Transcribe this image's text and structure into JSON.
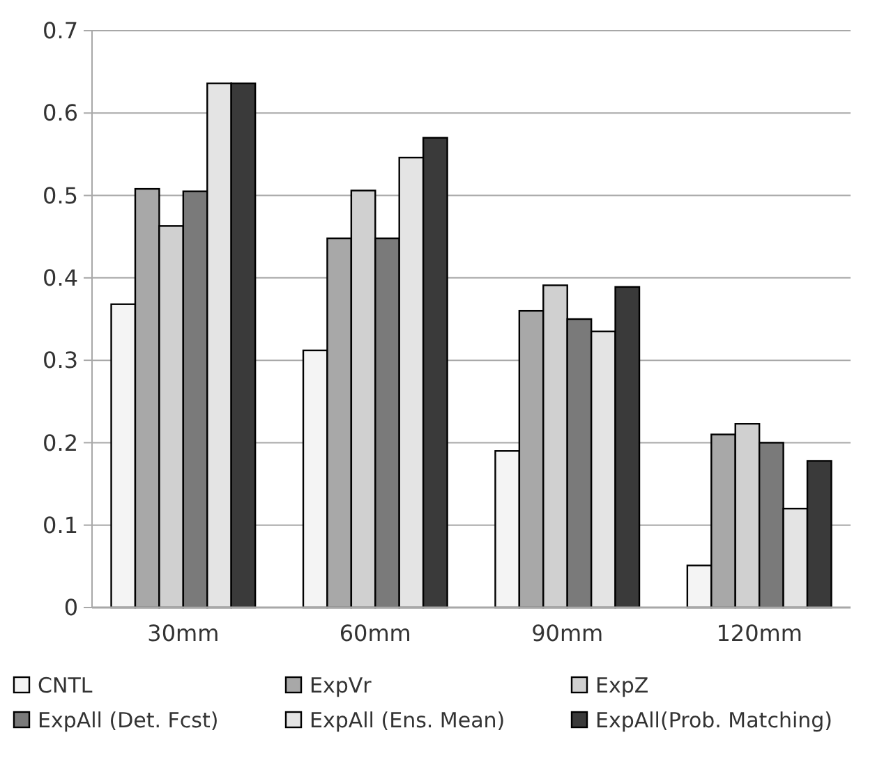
{
  "chart_data": {
    "type": "bar",
    "categories": [
      "30mm",
      "60mm",
      "90mm",
      "120mm"
    ],
    "series": [
      {
        "name": "CNTL",
        "color": "#f4f4f4",
        "values": [
          0.368,
          0.312,
          0.19,
          0.051
        ]
      },
      {
        "name": "ExpVr",
        "color": "#a8a8a8",
        "values": [
          0.508,
          0.448,
          0.36,
          0.21
        ]
      },
      {
        "name": "ExpZ",
        "color": "#d0d0d0",
        "values": [
          0.463,
          0.506,
          0.391,
          0.223
        ]
      },
      {
        "name": "ExpAll (Det. Fcst)",
        "color": "#7a7a7a",
        "values": [
          0.505,
          0.448,
          0.35,
          0.2
        ]
      },
      {
        "name": "ExpAll (Ens. Mean)",
        "color": "#e4e4e4",
        "values": [
          0.636,
          0.546,
          0.335,
          0.12
        ]
      },
      {
        "name": "ExpAll(Prob. Matching)",
        "color": "#3a3a3a",
        "values": [
          0.636,
          0.57,
          0.389,
          0.178
        ]
      }
    ],
    "ylim": [
      0,
      0.7
    ],
    "yticks": [
      0,
      0.1,
      0.2,
      0.3,
      0.4,
      0.5,
      0.6,
      0.7
    ],
    "grid": "y",
    "legend": "bottom"
  }
}
